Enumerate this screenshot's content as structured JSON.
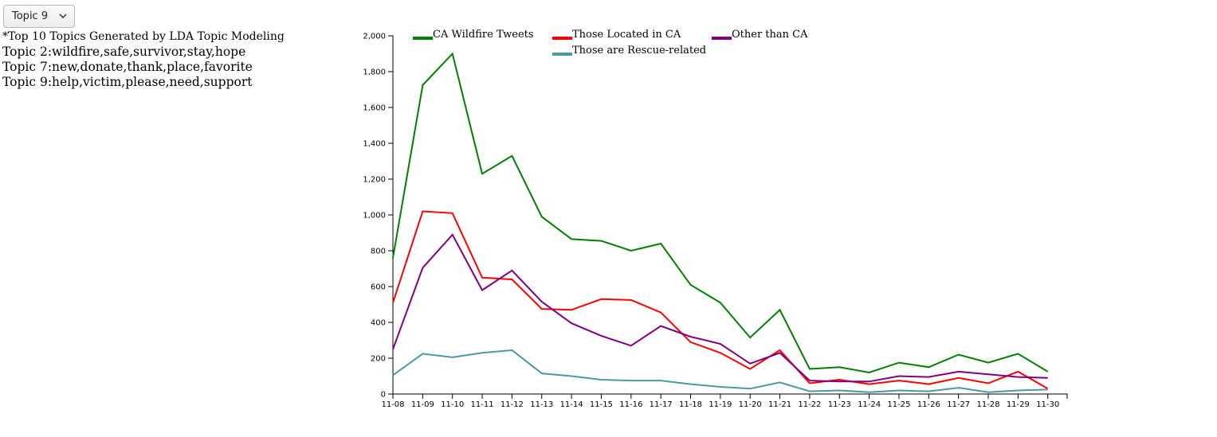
{
  "selector": {
    "selected": "Topic 9"
  },
  "topics_panel": {
    "heading": "*Top 10 Topics Generated by LDA Topic Modeling",
    "lines": [
      "Topic 2:wildfire,safe,survivor,stay,hope",
      "Topic 7:new,donate,thank,place,favorite",
      "Topic 9:help,victim,please,need,support"
    ]
  },
  "chart_data": {
    "type": "line",
    "title": "",
    "xlabel": "",
    "ylabel": "",
    "ylim": [
      0,
      2000
    ],
    "yticks": [
      0,
      200,
      400,
      600,
      800,
      1000,
      1200,
      1400,
      1600,
      1800,
      2000
    ],
    "ytick_labels": [
      "0",
      "200",
      "400",
      "600",
      "800",
      "1,000",
      "1,200",
      "1,400",
      "1,600",
      "1,800",
      "2,000"
    ],
    "categories": [
      "11-08",
      "11-09",
      "11-10",
      "11-11",
      "11-12",
      "11-13",
      "11-14",
      "11-15",
      "11-16",
      "11-17",
      "11-18",
      "11-19",
      "11-20",
      "11-21",
      "11-22",
      "11-23",
      "11-24",
      "11-25",
      "11-26",
      "11-27",
      "11-28",
      "11-29",
      "11-30"
    ],
    "x_end_value": 22.65,
    "grid": false,
    "legend_position": "top",
    "series": [
      {
        "name": "CA Wildfire Tweets",
        "color": "#008000",
        "values": [
          760,
          1725,
          1900,
          1230,
          1330,
          990,
          865,
          855,
          800,
          840,
          610,
          510,
          315,
          470,
          140,
          150,
          120,
          175,
          150,
          220,
          175,
          225,
          125
        ]
      },
      {
        "name": "Those Located in CA",
        "color": "#ff0000",
        "values": [
          510,
          1020,
          1010,
          650,
          640,
          475,
          470,
          530,
          525,
          455,
          290,
          230,
          140,
          245,
          60,
          80,
          55,
          75,
          55,
          90,
          60,
          125,
          30
        ]
      },
      {
        "name": "Other than CA",
        "color": "#800080",
        "values": [
          250,
          705,
          890,
          580,
          690,
          515,
          395,
          325,
          270,
          380,
          320,
          280,
          170,
          230,
          75,
          70,
          70,
          100,
          95,
          125,
          110,
          95,
          90
        ]
      },
      {
        "name": "Those are Rescue-related",
        "color": "#4a9aa0",
        "values": [
          105,
          225,
          205,
          230,
          245,
          115,
          100,
          80,
          75,
          75,
          55,
          40,
          30,
          65,
          15,
          20,
          10,
          20,
          15,
          35,
          10,
          20,
          25
        ]
      }
    ]
  }
}
